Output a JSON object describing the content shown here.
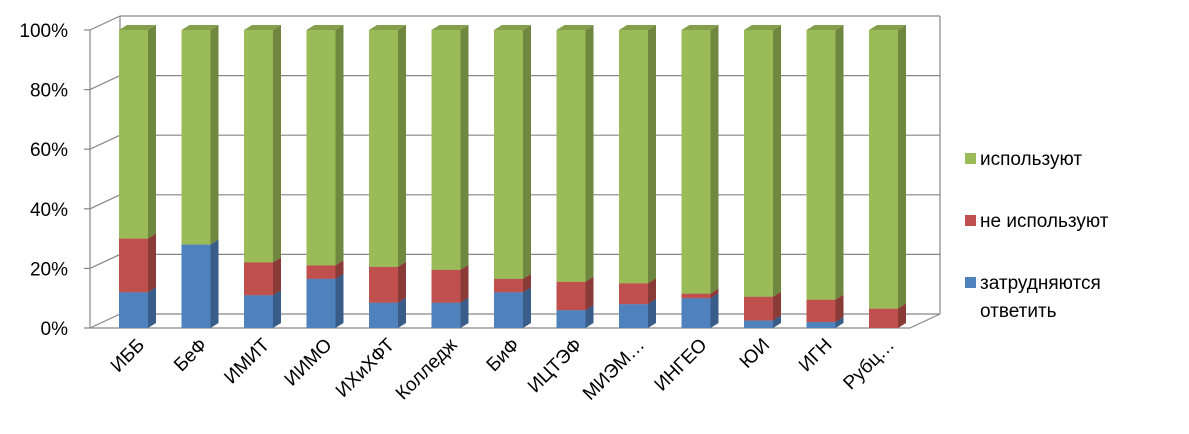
{
  "chart_data": {
    "type": "bar",
    "stacked": true,
    "percent": true,
    "three_d": true,
    "categories": [
      "ИББ",
      "БеФ",
      "ИМИТ",
      "ИИМО",
      "ИХиХФТ",
      "Колледж",
      "БиФ",
      "ИЦТЭФ",
      "МИЭМ…",
      "ИНГЕО",
      "ЮИ",
      "ИГН",
      "Рубц…"
    ],
    "series": [
      {
        "name": "затрудняются ответить",
        "color": "#4f81bd",
        "values": [
          12,
          28,
          11,
          16.5,
          8.5,
          8.5,
          12,
          6,
          8,
          10,
          2.5,
          2,
          0
        ]
      },
      {
        "name": "не используют",
        "color": "#c0504d",
        "values": [
          18,
          0,
          11,
          4.5,
          12,
          11,
          4.5,
          9.5,
          7,
          1.5,
          8,
          7.5,
          6.5
        ]
      },
      {
        "name": "используют",
        "color": "#9bbb59",
        "values": [
          70,
          72,
          78,
          79,
          79.5,
          80.5,
          83.5,
          84.5,
          85,
          88.5,
          89.5,
          90.5,
          93.5
        ]
      }
    ],
    "ylim": [
      0,
      100
    ],
    "yticks": [
      "0%",
      "20%",
      "40%",
      "60%",
      "80%",
      "100%"
    ],
    "grid": true,
    "legend_position": "right"
  }
}
